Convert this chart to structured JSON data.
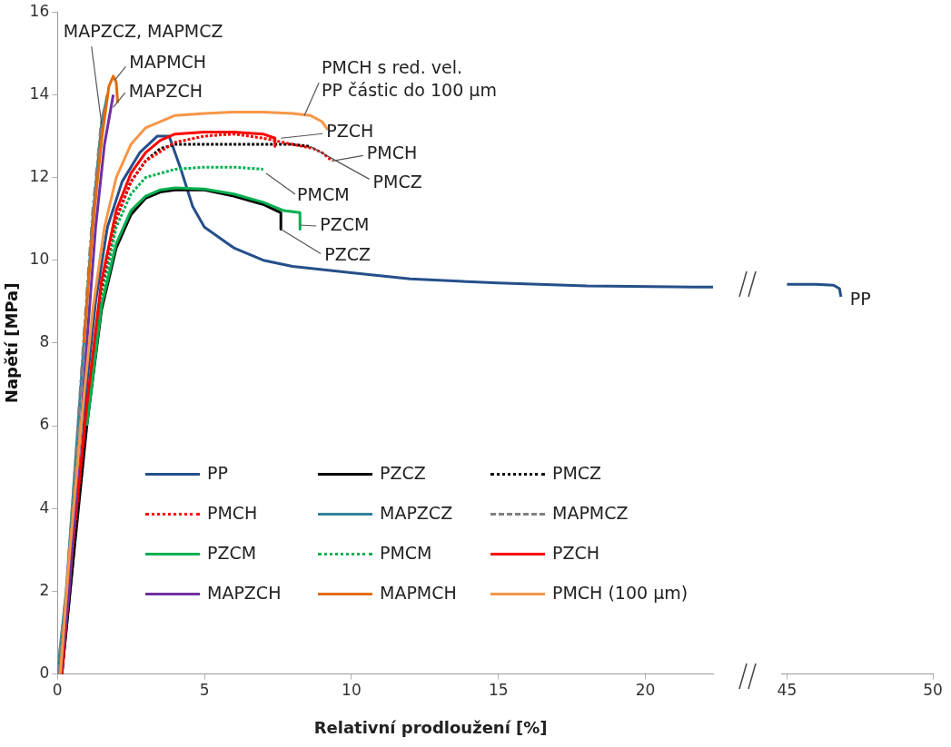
{
  "chart_data": [
    {
      "type": "line",
      "xlabel": "Relativní prodloužení [%]",
      "ylabel": "Napětí [MPa]",
      "xlim": [
        0,
        22.3
      ],
      "xticks": [
        0,
        5,
        10,
        15,
        20
      ],
      "ylim": [
        0,
        16
      ],
      "yticks": [
        0,
        2,
        4,
        6,
        8,
        10,
        12,
        14,
        16
      ],
      "grid": false,
      "legend": "bottom",
      "marker": "none",
      "tick_labels": "xy",
      "annotations": [
        {
          "text": "MAPZCZ, MAPMCZ",
          "x": 1.5,
          "y": 13.3
        },
        {
          "text": "MAPMCH",
          "x": 1.95,
          "y": 14.35
        },
        {
          "text": "MAPZCH",
          "x": 1.9,
          "y": 13.7
        },
        {
          "text": "PMCH s red. vel.\nPP částic do 100 µm",
          "x": 8.4,
          "y": 13.5
        },
        {
          "text": "PZCH",
          "x": 7.6,
          "y": 12.95
        },
        {
          "text": "PMCH",
          "x": 9.35,
          "y": 12.4
        },
        {
          "text": "PMCZ",
          "x": 8.6,
          "y": 12.75
        },
        {
          "text": "PMCM",
          "x": 7.1,
          "y": 12.1
        },
        {
          "text": "PZCM",
          "x": 8.25,
          "y": 10.85
        },
        {
          "text": "PZCZ",
          "x": 7.6,
          "y": 10.75
        }
      ],
      "series": [
        {
          "name": "PP",
          "color": "#254f8a",
          "line_style": "solid",
          "x": [
            0.15,
            0.5,
            0.8,
            1,
            1.3,
            1.7,
            2.2,
            2.8,
            3.4,
            3.8,
            4.2,
            4.6,
            5,
            6,
            7,
            8,
            10,
            12,
            15,
            18,
            22.3
          ],
          "values": [
            0,
            2.5,
            5,
            7,
            9,
            10.8,
            11.9,
            12.6,
            13,
            13,
            12.2,
            11.3,
            10.8,
            10.3,
            10,
            9.85,
            9.7,
            9.55,
            9.45,
            9.38,
            9.35
          ]
        },
        {
          "name": "PZCZ",
          "color": "#000000",
          "line_style": "solid",
          "x": [
            0.15,
            0.5,
            1,
            1.5,
            2,
            2.5,
            3,
            3.5,
            4,
            5,
            6,
            7,
            7.6,
            7.6
          ],
          "values": [
            0,
            2.5,
            6,
            8.8,
            10.3,
            11.1,
            11.5,
            11.65,
            11.7,
            11.7,
            11.55,
            11.35,
            11.15,
            10.75
          ]
        },
        {
          "name": "PMCZ",
          "color": "#000000",
          "line_style": "dotted",
          "x": [
            0.15,
            0.5,
            1,
            1.5,
            2,
            2.5,
            3,
            3.5,
            4,
            6,
            8,
            8.6
          ],
          "values": [
            0,
            2.8,
            6.3,
            9.3,
            11,
            11.9,
            12.4,
            12.7,
            12.8,
            12.8,
            12.8,
            12.75
          ]
        },
        {
          "name": "PMCH",
          "color": "#ff0000",
          "line_style": "dotted",
          "x": [
            0.15,
            0.5,
            1,
            1.5,
            2,
            2.5,
            3,
            4,
            5,
            6,
            7,
            8,
            8.7,
            9,
            9.35
          ],
          "values": [
            0,
            2.9,
            6.4,
            9.4,
            11,
            11.9,
            12.4,
            12.85,
            13,
            13.05,
            12.95,
            12.8,
            12.7,
            12.6,
            12.4
          ]
        },
        {
          "name": "MAPZCZ",
          "color": "#31849b",
          "line_style": "solid",
          "x": [
            0,
            0.3,
            0.6,
            0.9,
            1.2,
            1.5,
            1.7
          ],
          "values": [
            0,
            2,
            5,
            8,
            11,
            13.3,
            14
          ]
        },
        {
          "name": "MAPMCZ",
          "color": "#808080",
          "line_style": "dashed",
          "x": [
            0,
            0.3,
            0.6,
            0.9,
            1.2,
            1.5,
            1.7
          ],
          "values": [
            0,
            2,
            5,
            8.2,
            11.2,
            13.4,
            13.9
          ]
        },
        {
          "name": "PZCM",
          "color": "#00b050",
          "line_style": "solid",
          "x": [
            1,
            1.5,
            2,
            2.5,
            3,
            3.5,
            4,
            5,
            6,
            7,
            7.7,
            8.25,
            8.25
          ],
          "values": [
            6,
            8.9,
            10.4,
            11.2,
            11.55,
            11.7,
            11.75,
            11.72,
            11.6,
            11.4,
            11.2,
            11.15,
            10.75
          ]
        },
        {
          "name": "PMCM",
          "color": "#00b050",
          "line_style": "dotted",
          "x": [
            1,
            1.5,
            2,
            2.5,
            3,
            4,
            5,
            6,
            7
          ],
          "values": [
            6.2,
            9,
            10.8,
            11.6,
            12,
            12.2,
            12.25,
            12.25,
            12.2
          ]
        },
        {
          "name": "PZCH",
          "color": "#ff0000",
          "line_style": "solid",
          "x": [
            0.15,
            0.5,
            1,
            1.5,
            2,
            2.5,
            3,
            3.5,
            4,
            5,
            6,
            7,
            7.4,
            7.4
          ],
          "values": [
            0,
            3,
            6.5,
            9.5,
            11.2,
            12.1,
            12.6,
            12.9,
            13.05,
            13.1,
            13.1,
            13.05,
            12.95,
            12.75
          ]
        },
        {
          "name": "MAPZCH",
          "color": "#7030a0",
          "line_style": "solid",
          "x": [
            0.1,
            0.4,
            0.7,
            1,
            1.3,
            1.6,
            1.9
          ],
          "values": [
            0,
            2,
            5,
            8,
            10.8,
            12.8,
            14
          ]
        },
        {
          "name": "MAPMCH",
          "color": "#e36c09",
          "line_style": "solid",
          "x": [
            0.9,
            1.2,
            1.5,
            1.75,
            1.9,
            2,
            2.05
          ],
          "values": [
            8,
            10.8,
            12.9,
            14.2,
            14.45,
            14.3,
            13.8
          ]
        },
        {
          "name": "PMCH (100 µm)",
          "color": "#f79646",
          "line_style": "solid",
          "x": [
            0.1,
            0.4,
            0.8,
            1.2,
            1.6,
            2,
            2.5,
            3,
            4,
            5,
            6,
            7,
            8,
            8.6,
            9,
            9.2
          ],
          "values": [
            0,
            2.8,
            6,
            8.8,
            10.8,
            12,
            12.8,
            13.2,
            13.5,
            13.55,
            13.58,
            13.58,
            13.55,
            13.5,
            13.35,
            13.15
          ]
        }
      ]
    },
    {
      "type": "line",
      "xlim": [
        44.8,
        50
      ],
      "xticks": [
        45,
        50
      ],
      "ylim": [
        0,
        16
      ],
      "yticks": [
        0,
        2,
        4,
        6,
        8,
        10,
        12,
        14,
        16
      ],
      "grid": false,
      "legend": false,
      "marker": "none",
      "tick_labels": "x",
      "series": [
        {
          "name": "PP",
          "color": "#254f8a",
          "line_style": "solid",
          "x": [
            45,
            46,
            46.6,
            46.8,
            46.85
          ],
          "values": [
            9.4,
            9.4,
            9.38,
            9.3,
            9.1
          ]
        }
      ]
    }
  ]
}
